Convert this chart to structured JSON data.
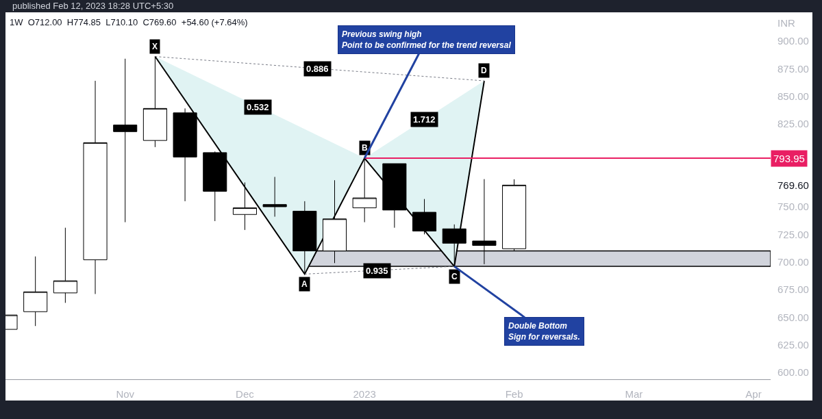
{
  "chart_data": {
    "type": "candlestick",
    "title": "1W  O712.00  H774.85  L710.10  C769.60  +54.60 (+7.64%)",
    "ylabel": "INR",
    "x": [
      "2022-10-10",
      "2022-10-17",
      "2022-10-24",
      "2022-10-31",
      "2022-11-07",
      "2022-11-14",
      "2022-11-21",
      "2022-11-28",
      "2022-12-05",
      "2022-12-12",
      "2022-12-19",
      "2022-12-26",
      "2023-01-02",
      "2023-01-09",
      "2023-01-16",
      "2023-01-23",
      "2023-01-30",
      "2023-02-06"
    ],
    "ohlc": [
      [
        639,
        652,
        639,
        652
      ],
      [
        655,
        705,
        642,
        673
      ],
      [
        672,
        731,
        663,
        683
      ],
      [
        702,
        864,
        671,
        808
      ],
      [
        824,
        884,
        736,
        818
      ],
      [
        810,
        886,
        804,
        839
      ],
      [
        835,
        839,
        755,
        795
      ],
      [
        799,
        800,
        737,
        764
      ],
      [
        743,
        772,
        729,
        749
      ],
      [
        752,
        777,
        741,
        750
      ],
      [
        746,
        755,
        689,
        710
      ],
      [
        710,
        774,
        699,
        739
      ],
      [
        749,
        793.95,
        736,
        758
      ],
      [
        789,
        789,
        731,
        747
      ],
      [
        745,
        757,
        725,
        728
      ],
      [
        730,
        734,
        696,
        717
      ],
      [
        719,
        775,
        698,
        715
      ],
      [
        712.0,
        774.85,
        710.1,
        769.6
      ]
    ],
    "xlim": [
      "2022-10-10",
      "2023-04-07"
    ],
    "xticks": [
      {
        "value": "2022-11-07",
        "label": "Nov"
      },
      {
        "value": "2022-12-05",
        "label": "Dec"
      },
      {
        "value": "2023-01-02",
        "label": "2023"
      },
      {
        "value": "2023-02-06",
        "label": "Feb"
      },
      {
        "value": "2023-03-06",
        "label": "Mar"
      },
      {
        "value": "2023-04-03",
        "label": "Apr"
      }
    ],
    "ylim": [
      593.8,
      926
    ],
    "yticks": [
      {
        "value": 600,
        "label": "600.00"
      },
      {
        "value": 625,
        "label": "625.00"
      },
      {
        "value": 650,
        "label": "650.00"
      },
      {
        "value": 675,
        "label": "675.00"
      },
      {
        "value": 700,
        "label": "700.00"
      },
      {
        "value": 725,
        "label": "725.00"
      },
      {
        "value": 750,
        "label": "750.00"
      },
      {
        "value": 769.6,
        "label": "769.60"
      },
      {
        "value": 825,
        "label": "825.00"
      },
      {
        "value": 850,
        "label": "850.00"
      },
      {
        "value": 875,
        "label": "875.00"
      },
      {
        "value": 900,
        "label": "900.00"
      }
    ],
    "grid": false,
    "series": [
      {
        "type": "area",
        "color": "#e0f3f3",
        "line_style": "dotted",
        "x": [
          "2022-11-14",
          "2022-12-19",
          "2023-01-02"
        ],
        "values": [
          886,
          689,
          793.95
        ]
      },
      {
        "type": "area",
        "color": "#e0f3f3",
        "line_style": "dotted",
        "x": [
          "2023-01-02",
          "2023-01-23",
          "2023-01-30"
        ],
        "values": [
          793.95,
          696,
          864
        ]
      },
      {
        "type": "line",
        "color": "#000000",
        "line_style": "solid",
        "x": [
          "2022-11-14",
          "2022-12-19",
          "2023-01-02",
          "2023-01-23",
          "2023-01-30"
        ],
        "values": [
          886,
          689,
          793.95,
          696,
          864
        ]
      },
      {
        "type": "line",
        "color": "#787b86",
        "line_style": "dotted",
        "x": [
          "2022-11-14",
          "2023-01-30"
        ],
        "values": [
          886,
          864
        ]
      },
      {
        "type": "line",
        "color": "#787b86",
        "line_style": "dotted",
        "x": [
          "2022-12-19",
          "2023-01-23"
        ],
        "values": [
          689,
          696
        ]
      }
    ],
    "ref_lines": [
      {
        "axis": "y",
        "value": 793.95,
        "label": "793.95",
        "color": "#e91e63"
      }
    ],
    "bands": [
      {
        "axis": "y",
        "from": 696,
        "to": 710,
        "color": "#d1d4dc"
      }
    ],
    "annotations": [
      "published Feb 12, 2023 18:28 UTC+5:30",
      {
        "text": "X",
        "x": "2022-11-14",
        "y": 886
      },
      {
        "text": "A",
        "x": "2022-12-19",
        "y": 689
      },
      {
        "text": "B",
        "x": "2023-01-02",
        "y": 793.95
      },
      {
        "text": "C",
        "x": "2023-01-23",
        "y": 696
      },
      {
        "text": "D",
        "x": "2023-01-30",
        "y": 864
      },
      {
        "text": "0.532",
        "x": "2022-12-08",
        "y": 840
      },
      {
        "text": "0.886",
        "x": "2022-12-22",
        "y": 875
      },
      {
        "text": "1.712",
        "x": "2023-01-16",
        "y": 829
      },
      {
        "text": "0.935",
        "x": "2023-01-05",
        "y": 692
      },
      {
        "text": "Previous swing high\nPoint to be confirmed for the trend reversal",
        "x": "2023-01-02",
        "y": 793.95
      },
      {
        "text": "Double Bottom\nSign for reversals.",
        "x": "2023-01-23",
        "y": 696
      }
    ]
  }
}
